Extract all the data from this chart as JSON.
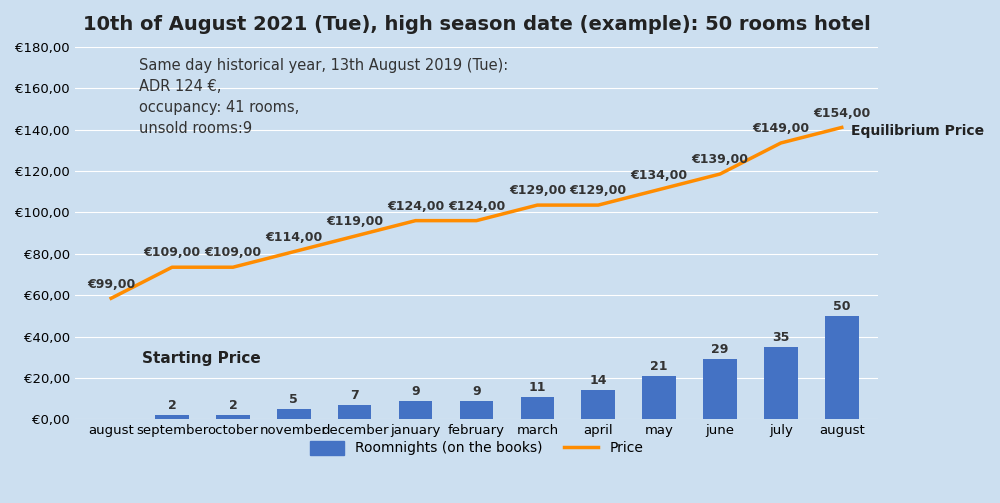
{
  "title": "10th of August 2021 (Tue), high season date (example): 50 rooms hotel",
  "categories": [
    "august",
    "september",
    "october",
    "november",
    "december",
    "january",
    "february",
    "march",
    "april",
    "may",
    "june",
    "july",
    "august"
  ],
  "bar_values": [
    0,
    2,
    2,
    5,
    7,
    9,
    9,
    11,
    14,
    21,
    29,
    35,
    50
  ],
  "price_values": [
    99,
    109,
    109,
    114,
    119,
    124,
    124,
    129,
    129,
    134,
    139,
    149,
    154
  ],
  "price_labels": [
    "€99,00",
    "€109,00",
    "€109,00",
    "€114,00",
    "€119,00",
    "€124,00",
    "€124,00",
    "€129,00",
    "€129,00",
    "€134,00",
    "€139,00",
    "€149,00",
    "€154,00"
  ],
  "bar_labels": [
    "",
    "2",
    "2",
    "5",
    "7",
    "9",
    "9",
    "11",
    "14",
    "21",
    "29",
    "35",
    "50"
  ],
  "bar_color": "#4472C4",
  "line_color": "#FF8C00",
  "background_color_top": "#C5D8EE",
  "background_color_bottom": "#D8E8F5",
  "background_color": "#CCDFF0",
  "ylim_bar": [
    0,
    180
  ],
  "yticks_bar": [
    0,
    20,
    40,
    60,
    80,
    100,
    120,
    140,
    160,
    180
  ],
  "ytick_labels_bar": [
    "€0,00",
    "€20,00",
    "€40,00",
    "€60,00",
    "€80,00",
    "€100,00",
    "€120,00",
    "€140,00",
    "€160,00",
    "€180,00"
  ],
  "annotation_text": "Same day historical year, 13th August 2019 (Tue):\nADR 124 €,\noccupancy: 41 rooms,\nunsold rooms:9",
  "starting_price_label": "Starting Price",
  "equilibrium_label": "Equilibrium Price",
  "legend_bar_label": "Roomnights (on the books)",
  "legend_line_label": "Price",
  "title_fontsize": 14,
  "annotation_fontsize": 10.5,
  "tick_fontsize": 9.5,
  "price_label_fontsize": 9,
  "bar_label_fontsize": 9,
  "starting_price_fontsize": 11,
  "equilibrium_fontsize": 10
}
